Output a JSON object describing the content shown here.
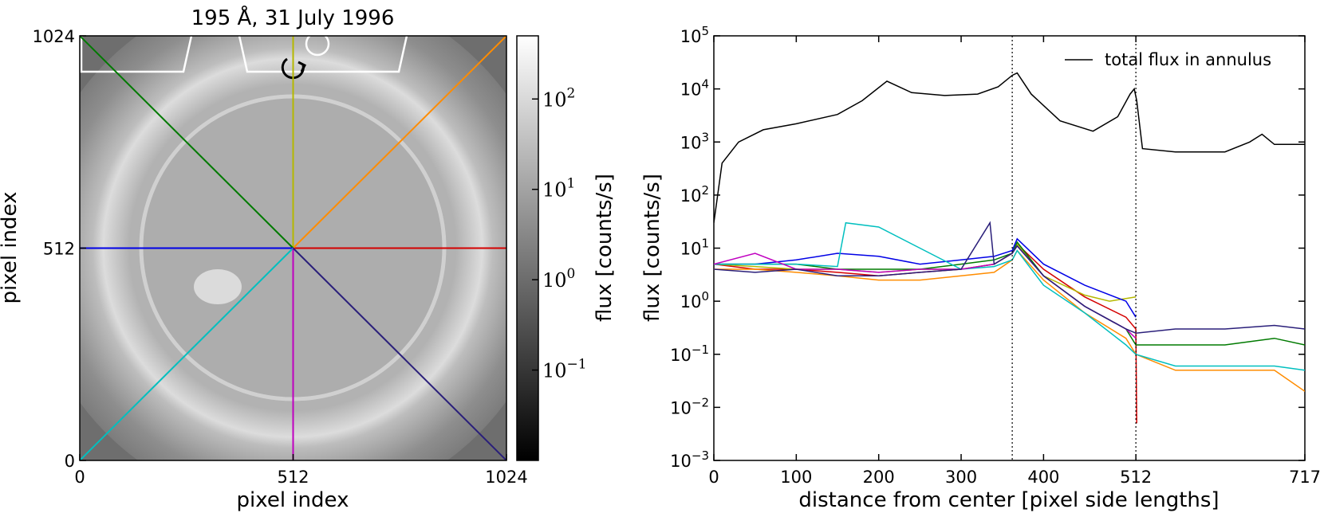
{
  "left_panel": {
    "title": "195 Å, 31 July 1996",
    "xlabel": "pixel index",
    "ylabel": "pixel index",
    "x_ticks": [
      "0",
      "512",
      "1024"
    ],
    "y_ticks": [
      "0",
      "512",
      "1024"
    ],
    "colorbar": {
      "label": "flux [counts/s]",
      "scale": "log",
      "ticks": [
        {
          "value": 100,
          "base": "10",
          "exp": "2"
        },
        {
          "value": 10,
          "base": "10",
          "exp": "1"
        },
        {
          "value": 1,
          "base": "10",
          "exp": "0"
        },
        {
          "value": 0.1,
          "base": "10",
          "exp": "−1"
        }
      ],
      "range": [
        0.01,
        500
      ]
    },
    "rays": [
      {
        "name": "east",
        "color": "#d40000",
        "from": [
          512,
          512
        ],
        "to": [
          1024,
          512
        ]
      },
      {
        "name": "north-east",
        "color": "#ff8c00",
        "from": [
          512,
          512
        ],
        "to": [
          1024,
          1024
        ]
      },
      {
        "name": "north",
        "color": "#b5b800",
        "from": [
          512,
          512
        ],
        "to": [
          512,
          1024
        ]
      },
      {
        "name": "north-west",
        "color": "#007a00",
        "from": [
          512,
          512
        ],
        "to": [
          0,
          1024
        ]
      },
      {
        "name": "west",
        "color": "#0000e6",
        "from": [
          512,
          512
        ],
        "to": [
          0,
          512
        ]
      },
      {
        "name": "south-west",
        "color": "#00bfbf",
        "from": [
          512,
          512
        ],
        "to": [
          0,
          0
        ]
      },
      {
        "name": "south",
        "color": "#c000c0",
        "from": [
          512,
          512
        ],
        "to": [
          512,
          0
        ]
      },
      {
        "name": "south-east",
        "color": "#2a1f7a",
        "from": [
          512,
          512
        ],
        "to": [
          1024,
          0
        ]
      }
    ]
  },
  "chart_data": {
    "type": "line",
    "xlabel": "distance from center [pixel side lengths]",
    "ylabel": "flux [counts/s]",
    "xlim": [
      0,
      717
    ],
    "ylim": [
      0.001,
      100000
    ],
    "y_scale": "log",
    "x_ticks": [
      "0",
      "100",
      "200",
      "300",
      "400",
      "512",
      "717"
    ],
    "y_ticks": [
      {
        "base": "10",
        "exp": "5"
      },
      {
        "base": "10",
        "exp": "4"
      },
      {
        "base": "10",
        "exp": "3"
      },
      {
        "base": "10",
        "exp": "2"
      },
      {
        "base": "10",
        "exp": "1"
      },
      {
        "base": "10",
        "exp": "0"
      },
      {
        "base": "10",
        "exp": "−1"
      },
      {
        "base": "10",
        "exp": "−2"
      },
      {
        "base": "10",
        "exp": "−3"
      }
    ],
    "vlines": [
      362,
      512
    ],
    "legend": {
      "position": "top-right",
      "entries": [
        "total flux in annulus"
      ]
    },
    "series": [
      {
        "name": "total flux in annulus",
        "color": "#000000",
        "x": [
          0,
          10,
          30,
          60,
          100,
          150,
          180,
          210,
          240,
          280,
          320,
          345,
          362,
          368,
          385,
          420,
          460,
          490,
          505,
          510,
          513,
          520,
          560,
          620,
          650,
          665,
          680,
          717
        ],
        "y": [
          30,
          400,
          1000,
          1700,
          2200,
          3300,
          6000,
          14000,
          8500,
          7500,
          8000,
          11000,
          18000,
          20000,
          8000,
          2500,
          1600,
          3000,
          8000,
          10000,
          6000,
          750,
          650,
          650,
          1000,
          1400,
          900,
          900
        ]
      },
      {
        "color": "#d40000",
        "x": [
          0,
          50,
          100,
          150,
          200,
          250,
          300,
          340,
          362,
          368,
          400,
          450,
          500,
          512,
          513
        ],
        "y": [
          5,
          4,
          4,
          3.5,
          3,
          3.5,
          4,
          5,
          8,
          12,
          4,
          1.2,
          0.5,
          0.3,
          0.005
        ]
      },
      {
        "color": "#ff8c00",
        "x": [
          0,
          50,
          100,
          150,
          200,
          250,
          300,
          340,
          362,
          368,
          400,
          450,
          500,
          512,
          560,
          620,
          680,
          717
        ],
        "y": [
          4,
          4,
          3.5,
          3,
          2.5,
          2.5,
          3,
          3.5,
          6,
          9,
          2.5,
          0.6,
          0.2,
          0.1,
          0.05,
          0.05,
          0.05,
          0.02
        ]
      },
      {
        "color": "#b5b800",
        "x": [
          0,
          50,
          100,
          150,
          200,
          250,
          300,
          340,
          362,
          368,
          400,
          450,
          480,
          512
        ],
        "y": [
          5,
          4.5,
          4,
          4,
          3.5,
          4,
          4,
          5,
          8,
          12,
          3,
          1.3,
          1,
          1.2
        ]
      },
      {
        "color": "#007a00",
        "x": [
          0,
          50,
          100,
          150,
          200,
          250,
          300,
          340,
          362,
          368,
          400,
          450,
          500,
          512,
          560,
          620,
          680,
          717
        ],
        "y": [
          5,
          5,
          5,
          4,
          4,
          4,
          5,
          6,
          8,
          13,
          3,
          0.8,
          0.3,
          0.15,
          0.15,
          0.15,
          0.2,
          0.15
        ]
      },
      {
        "color": "#0000e6",
        "x": [
          0,
          50,
          100,
          150,
          200,
          250,
          300,
          340,
          362,
          368,
          400,
          450,
          500,
          512
        ],
        "y": [
          5,
          5,
          6,
          8,
          7,
          5,
          6,
          7,
          9,
          15,
          5,
          2,
          1,
          0.5
        ]
      },
      {
        "color": "#00bfbf",
        "x": [
          0,
          50,
          100,
          150,
          160,
          200,
          250,
          300,
          340,
          362,
          368,
          400,
          450,
          500,
          512,
          560,
          620,
          680,
          717
        ],
        "y": [
          5,
          5,
          5,
          4.5,
          30,
          25,
          10,
          4,
          4.5,
          6,
          9,
          2,
          0.6,
          0.15,
          0.1,
          0.06,
          0.06,
          0.06,
          0.05
        ]
      },
      {
        "color": "#c000c0",
        "x": [
          0,
          50,
          100,
          150,
          200,
          250,
          300,
          340,
          362,
          368,
          400,
          450,
          500,
          512
        ],
        "y": [
          5,
          8,
          4,
          4,
          3.5,
          4,
          4,
          5,
          8,
          11,
          3,
          0.8,
          0.3,
          0.2
        ]
      },
      {
        "color": "#2a1f7a",
        "x": [
          0,
          50,
          100,
          150,
          200,
          250,
          300,
          335,
          340,
          362,
          368,
          400,
          450,
          500,
          512,
          560,
          620,
          680,
          717
        ],
        "y": [
          4,
          3.5,
          4,
          3,
          3,
          3.5,
          4,
          30,
          5,
          8,
          11,
          3,
          0.8,
          0.3,
          0.25,
          0.3,
          0.3,
          0.35,
          0.3
        ]
      }
    ]
  }
}
